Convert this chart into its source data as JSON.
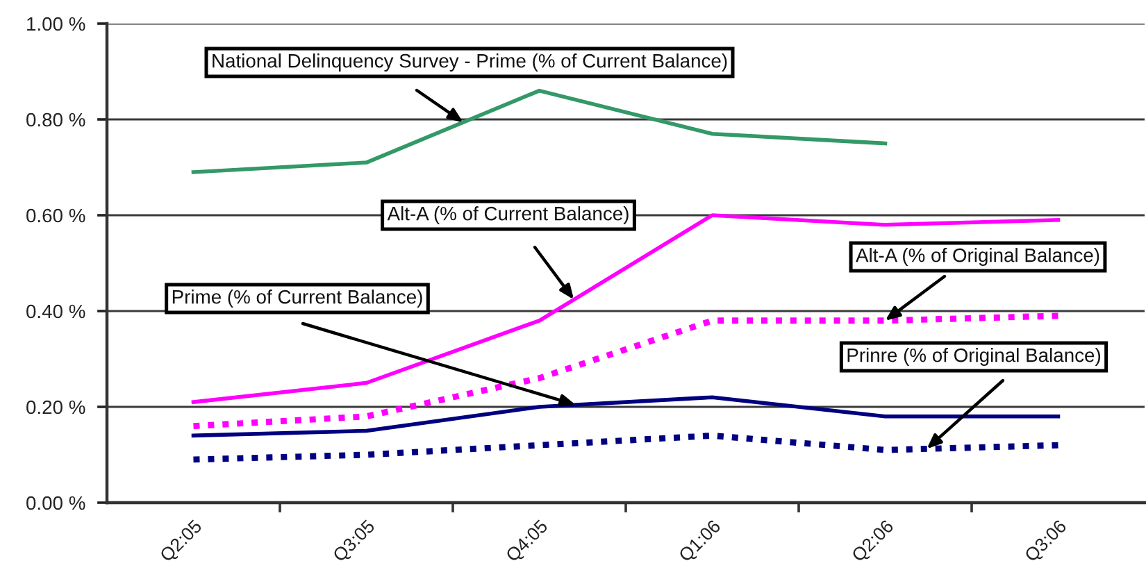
{
  "chart_data": {
    "type": "line",
    "categories": [
      "Q2:05",
      "Q3:05",
      "Q4:05",
      "Q1:06",
      "Q2:06",
      "Q3:06"
    ],
    "series": [
      {
        "name": "National Delinquency Survey - Prime (% of Current Balance)",
        "color": "#339966",
        "line_style": "solid",
        "values": [
          0.69,
          0.71,
          0.86,
          0.77,
          0.75,
          null
        ]
      },
      {
        "name": "Alt-A (% of Current Balance)",
        "color": "#ff00ff",
        "line_style": "solid",
        "values": [
          0.21,
          0.25,
          0.38,
          0.6,
          0.58,
          0.59
        ]
      },
      {
        "name": "Alt-A (% of Original Balance)",
        "color": "#ff00ff",
        "line_style": "dashed",
        "values": [
          0.16,
          0.18,
          0.26,
          0.38,
          0.38,
          0.39
        ]
      },
      {
        "name": "Prime (% of Current Balance)",
        "color": "#000080",
        "line_style": "solid",
        "values": [
          0.14,
          0.15,
          0.2,
          0.22,
          0.18,
          0.18
        ]
      },
      {
        "name": "Prinre (% of Original Balance)",
        "color": "#000080",
        "line_style": "dashed",
        "values": [
          0.09,
          0.1,
          0.12,
          0.14,
          0.11,
          0.12
        ]
      }
    ],
    "ylim": [
      0,
      1.0
    ],
    "yticks": [
      {
        "value": 0,
        "label": "0.00 %"
      },
      {
        "value": 0.2,
        "label": "0.20 %"
      },
      {
        "value": 0.4,
        "label": "0.40 %"
      },
      {
        "value": 0.6,
        "label": "0.60 %"
      },
      {
        "value": 0.8,
        "label": "0.80 %"
      },
      {
        "value": 1.0,
        "label": "1.00 %"
      }
    ],
    "grid": "y",
    "marker": "none"
  }
}
